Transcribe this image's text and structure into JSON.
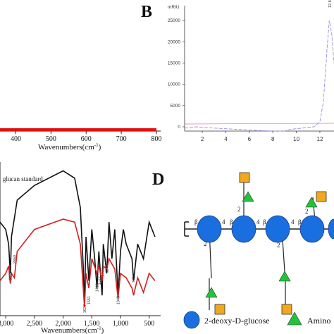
{
  "panels": {
    "A": {
      "letter": "",
      "xlabel": "Wavenumbers(cm",
      "xlabel_sup": "-1",
      "xlabel_end": ")",
      "series_color": "#e01010"
    },
    "B": {
      "letter": "B",
      "unit": "mRIU",
      "series_color": "#9d8be8"
    },
    "C": {
      "letter": "",
      "legend": "glucan standard",
      "xlabel": "Wavenumbers(cm",
      "xlabel_sup": "-1",
      "xlabel_end": ")"
    },
    "D": {
      "letter": "D",
      "linkage_beta": "β",
      "linkage_four": "4",
      "linkage_two": "2",
      "legend": {
        "glucose": "2-deoxy-D-glucose",
        "amino": "Amino"
      },
      "colors": {
        "glucose": "#1a6fe0",
        "amino": "#22c33a",
        "square": "#f2a81a"
      }
    }
  },
  "chart_data": [
    {
      "id": "A",
      "type": "line",
      "title": "",
      "xlabel": "Wavenumbers(cm-1)",
      "ylabel": "",
      "xlim": [
        355,
        800
      ],
      "xticks": [
        400,
        500,
        600,
        700,
        800
      ],
      "series": [
        {
          "x": [
            355,
            400,
            500,
            600,
            700,
            800
          ],
          "y": [
            0,
            0,
            0,
            0,
            0,
            0
          ]
        }
      ]
    },
    {
      "id": "B",
      "type": "line",
      "title": "",
      "xlabel": "",
      "ylabel": "mRIU",
      "xlim": [
        0.5,
        13.2
      ],
      "ylim": [
        -1000,
        28500
      ],
      "xticks": [
        2,
        4,
        6,
        8,
        10,
        12
      ],
      "yticks": [
        0,
        5000,
        10000,
        15000,
        20000,
        25000
      ],
      "peak_label": "12.8",
      "series": [
        {
          "x": [
            0.5,
            1.5,
            3,
            5,
            7,
            8,
            9,
            9.5,
            10.5,
            11.5,
            12,
            12.3,
            12.6,
            12.8,
            13.0,
            13.2
          ],
          "y": [
            -300,
            0,
            -300,
            -600,
            -900,
            -1000,
            -1000,
            -600,
            -300,
            0,
            1200,
            6000,
            18000,
            25000,
            22000,
            15000
          ]
        }
      ]
    },
    {
      "id": "C",
      "type": "line",
      "title": "",
      "xlabel": "Wavenumbers(cm-1)",
      "ylabel": "",
      "xlim": [
        3100,
        300
      ],
      "xticks": [
        3000,
        2500,
        2000,
        1500,
        1000,
        500
      ],
      "xticklabels": [
        "3,000",
        "2,500",
        "2,000",
        "1,500",
        "1,000",
        "500"
      ],
      "annotations": [
        "2920",
        "2850",
        "1627",
        "1551",
        "1410",
        "1377",
        "1321",
        "1240",
        "1043",
        "771"
      ],
      "series": [
        {
          "name": "glucan standard",
          "x": [
            3100,
            3000,
            2950,
            2920,
            2900,
            2800,
            2500,
            2000,
            1800,
            1700,
            1650,
            1627,
            1600,
            1551,
            1500,
            1450,
            1410,
            1377,
            1340,
            1321,
            1300,
            1240,
            1200,
            1150,
            1100,
            1043,
            1000,
            950,
            900,
            800,
            771,
            700,
            600,
            500,
            400
          ],
          "y": [
            60,
            55,
            45,
            25,
            50,
            75,
            85,
            95,
            90,
            70,
            30,
            5,
            50,
            20,
            55,
            35,
            15,
            40,
            20,
            10,
            45,
            25,
            60,
            35,
            55,
            10,
            40,
            55,
            45,
            35,
            20,
            45,
            35,
            60,
            50
          ]
        },
        {
          "name": "",
          "x": [
            3100,
            3000,
            2950,
            2920,
            2900,
            2850,
            2800,
            2500,
            2000,
            1800,
            1700,
            1650,
            1627,
            1600,
            1551,
            1500,
            1410,
            1377,
            1321,
            1300,
            1240,
            1200,
            1100,
            1043,
            1000,
            900,
            800,
            771,
            700,
            600,
            500,
            400
          ],
          "y": [
            20,
            25,
            30,
            18,
            25,
            22,
            40,
            55,
            62,
            60,
            45,
            15,
            2,
            25,
            15,
            35,
            25,
            30,
            20,
            30,
            28,
            35,
            28,
            8,
            25,
            22,
            15,
            10,
            22,
            12,
            25,
            20
          ]
        }
      ]
    }
  ]
}
